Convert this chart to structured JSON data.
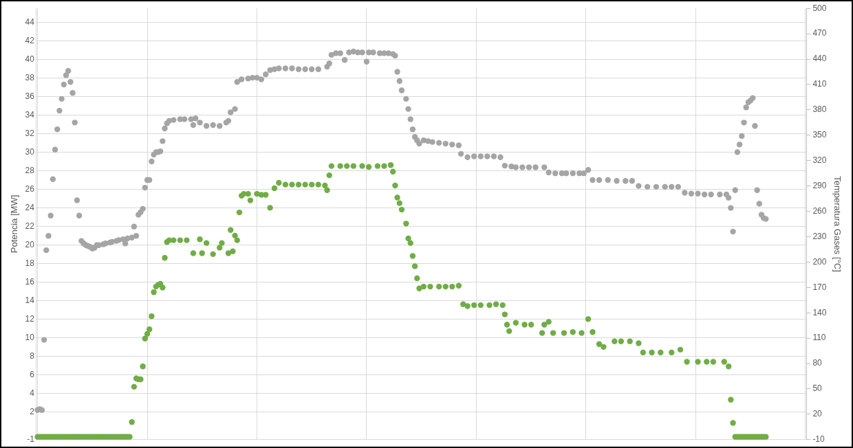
{
  "chart_data": {
    "type": "scatter",
    "ylabel": "Potencia [MW]",
    "y2label": "Temperatura Gases [°C]",
    "categories": [
      null,
      null,
      null,
      null,
      null,
      null,
      null,
      null,
      null,
      null,
      null,
      null,
      null,
      null,
      null,
      null,
      null,
      null,
      null,
      null,
      null,
      null,
      null,
      null,
      null,
      null,
      null,
      null,
      null,
      null,
      null,
      null,
      null,
      null,
      null,
      null,
      null,
      null,
      null,
      null,
      null,
      null,
      null,
      null,
      null,
      null,
      null,
      null,
      null,
      null,
      null,
      null,
      null,
      null,
      null,
      null,
      null,
      null,
      null,
      null,
      null,
      null,
      null,
      null,
      null,
      null,
      null,
      null,
      null,
      null,
      null,
      null,
      null,
      null,
      null,
      null,
      null,
      null,
      null,
      null,
      null,
      null,
      null,
      null,
      null,
      null,
      null,
      null,
      null,
      null,
      null,
      null,
      null,
      null,
      null,
      null,
      null,
      null,
      null,
      null,
      null,
      null,
      null,
      null,
      null,
      null,
      null,
      null,
      null,
      null,
      null,
      null,
      null,
      null,
      null,
      null,
      null,
      null,
      null,
      null,
      null,
      null,
      null,
      null,
      null,
      null,
      null,
      null,
      null,
      null,
      null,
      null,
      null,
      null,
      null,
      null,
      null,
      null,
      null,
      null,
      null,
      null,
      null,
      null,
      null,
      null,
      null,
      null,
      null,
      null,
      null,
      null,
      null,
      null,
      null,
      null,
      null,
      null,
      null,
      null,
      null,
      null,
      null,
      null,
      null,
      null,
      null,
      null,
      null,
      null,
      null,
      null,
      null,
      null,
      null,
      null,
      null,
      null,
      null,
      null,
      null,
      null,
      null,
      null,
      null,
      null,
      null,
      null,
      null,
      null,
      null,
      null,
      null,
      null,
      null,
      null,
      null,
      null,
      null,
      null,
      null,
      null,
      null,
      null,
      null,
      null,
      null,
      null,
      null,
      null,
      null,
      null,
      null,
      null,
      null,
      null,
      null,
      null,
      null,
      null,
      null,
      null,
      null,
      null,
      null,
      null,
      null,
      null,
      null,
      null,
      null,
      null,
      null,
      null,
      null,
      null,
      null,
      null,
      null,
      null,
      null,
      null,
      null,
      null,
      null,
      null,
      null,
      null,
      null,
      null,
      null,
      null,
      null,
      null,
      null,
      null,
      null,
      null,
      null,
      null,
      null,
      null,
      null,
      null,
      null,
      null,
      null,
      null,
      null,
      null,
      null,
      null,
      null,
      null,
      null,
      null,
      null,
      null,
      null,
      null,
      null,
      null,
      null,
      null,
      null,
      null,
      null,
      null,
      null,
      null,
      null,
      null,
      null,
      null,
      null,
      null,
      null,
      null,
      null,
      null,
      null,
      null,
      null,
      null,
      null,
      null,
      null,
      null,
      null,
      null,
      null,
      null,
      null,
      null,
      null,
      null,
      null,
      null,
      null,
      null,
      null,
      null,
      null,
      null,
      null,
      null,
      null,
      null,
      null,
      null,
      null,
      null,
      null,
      null,
      null,
      null,
      null,
      null,
      null,
      null,
      null,
      null,
      null,
      null,
      null,
      null,
      null,
      null,
      null,
      null,
      null
    ],
    "ylim": [
      -1,
      45.5
    ],
    "yticks": [
      -1,
      2,
      4,
      6,
      8,
      10,
      12,
      14,
      16,
      18,
      20,
      22,
      24,
      26,
      28,
      30,
      32,
      34,
      36,
      38,
      40,
      42,
      44
    ],
    "y2lim": [
      -10,
      500
    ],
    "y2ticks": [
      -10,
      20,
      50,
      80,
      110,
      140,
      170,
      200,
      230,
      260,
      290,
      320,
      350,
      380,
      410,
      440,
      470,
      500
    ],
    "grid": true,
    "legend": false,
    "marker": "circle",
    "tick_labels": "y",
    "series": [
      {
        "color": "#a5a5a5",
        "axis": "y2",
        "values": [
          25,
          26,
          25,
          108,
          214,
          231,
          255,
          298,
          333,
          357,
          379,
          393,
          410,
          421,
          426,
          413,
          400,
          365,
          273,
          255,
          225,
          222,
          220,
          219,
          218,
          216,
          217,
          220,
          220,
          null,
          221,
          222,
          null,
          223,
          224,
          null,
          225,
          226,
          null,
          227,
          222,
          228,
          null,
          229,
          242,
          231,
          256,
          259,
          263,
          288,
          297,
          297,
          319,
          327,
          330,
          330,
          331,
          343,
          358,
          364,
          367,
          null,
          368,
          null,
          null,
          369,
          null,
          369,
          null,
          null,
          369,
          362,
          370,
          null,
          365,
          null,
          null,
          361,
          null,
          null,
          362,
          null,
          null,
          361,
          null,
          null,
          365,
          367,
          377,
          null,
          381,
          413,
          null,
          416,
          null,
          null,
          417,
          null,
          418,
          null,
          418,
          null,
          416,
          null,
          422,
          null,
          427,
          null,
          428,
          null,
          429,
          null,
          null,
          429,
          null,
          null,
          429,
          null,
          null,
          428,
          null,
          null,
          428,
          null,
          null,
          428,
          null,
          null,
          428,
          null,
          null,
          null,
          431,
          435,
          445,
          null,
          447,
          null,
          447,
          null,
          439,
          null,
          448,
          null,
          449,
          null,
          448,
          null,
          448,
          null,
          437,
          448,
          null,
          448,
          null,
          null,
          447,
          null,
          447,
          null,
          447,
          null,
          446,
          444,
          425,
          414,
          403,
          null,
          393,
          381,
          369,
          357,
          348,
          344,
          340,
          null,
          344,
          null,
          343,
          null,
          342,
          null,
          null,
          341,
          null,
          null,
          340,
          null,
          null,
          339,
          null,
          null,
          338,
          328,
          null,
          null,
          324,
          null,
          null,
          325,
          null,
          null,
          325,
          null,
          null,
          325,
          null,
          null,
          325,
          null,
          null,
          324,
          null,
          314,
          null,
          null,
          313,
          null,
          312,
          null,
          null,
          312,
          null,
          null,
          312,
          null,
          null,
          312,
          null,
          null,
          null,
          312,
          null,
          306,
          null,
          null,
          305,
          null,
          null,
          305,
          null,
          305,
          null,
          null,
          305,
          null,
          null,
          305,
          null,
          305,
          null,
          309,
          null,
          297,
          null,
          null,
          297,
          null,
          null,
          null,
          297,
          null,
          null,
          null,
          296,
          null,
          null,
          null,
          296,
          null,
          null,
          296,
          null,
          null,
          290,
          null,
          null,
          null,
          289,
          null,
          null,
          null,
          289,
          null,
          null,
          null,
          289,
          null,
          null,
          289,
          null,
          null,
          289,
          null,
          null,
          282,
          null,
          null,
          281,
          null,
          null,
          281,
          null,
          null,
          280,
          null,
          null,
          280,
          null,
          null,
          null,
          280,
          null,
          null,
          280,
          276,
          264,
          236,
          285,
          330,
          339,
          349,
          365,
          383,
          389,
          391,
          394,
          361,
          285,
          269,
          256,
          252,
          251,
          null,
          null,
          null,
          null,
          null,
          null,
          null,
          null,
          null,
          null,
          null,
          null,
          null,
          null,
          null,
          null,
          null,
          null
        ]
      },
      {
        "color": "#70ad47",
        "values": [
          -0.7,
          -0.7,
          -0.7,
          -0.7,
          -0.7,
          -0.7,
          -0.7,
          -0.7,
          -0.7,
          -0.7,
          -0.7,
          -0.7,
          -0.7,
          -0.7,
          -0.7,
          -0.7,
          -0.7,
          -0.7,
          -0.7,
          -0.7,
          -0.7,
          -0.7,
          -0.7,
          -0.7,
          -0.7,
          -0.7,
          -0.7,
          -0.7,
          -0.7,
          -0.7,
          -0.7,
          -0.7,
          -0.7,
          -0.7,
          -0.7,
          -0.7,
          -0.7,
          -0.7,
          -0.7,
          -0.7,
          -0.7,
          -0.7,
          -0.7,
          0.9,
          4.7,
          5.6,
          5.5,
          5.5,
          6.9,
          9.9,
          10.4,
          10.9,
          12.3,
          14.9,
          15.5,
          15.7,
          15.8,
          15.4,
          18.6,
          20.3,
          20.5,
          null,
          20.5,
          null,
          null,
          20.5,
          null,
          null,
          20.5,
          null,
          null,
          19.1,
          null,
          null,
          20.6,
          19.1,
          null,
          20.2,
          null,
          null,
          19.0,
          null,
          null,
          19.7,
          20.2,
          null,
          null,
          19.1,
          21.6,
          19.3,
          21.0,
          20.5,
          23.5,
          25.3,
          25.5,
          null,
          25.5,
          24.8,
          null,
          null,
          25.5,
          null,
          25.4,
          null,
          25.4,
          null,
          24.0,
          null,
          26.1,
          null,
          26.7,
          null,
          null,
          26.5,
          null,
          null,
          26.5,
          null,
          null,
          26.5,
          null,
          null,
          26.5,
          null,
          null,
          26.5,
          null,
          null,
          26.5,
          null,
          null,
          26.4,
          25.9,
          27.5,
          28.5,
          null,
          null,
          null,
          28.5,
          null,
          null,
          28.5,
          null,
          null,
          28.5,
          null,
          null,
          null,
          28.5,
          null,
          null,
          28.4,
          null,
          null,
          null,
          28.5,
          null,
          null,
          28.5,
          null,
          null,
          28.6,
          27.9,
          26.4,
          25.1,
          24.5,
          23.8,
          null,
          22.3,
          20.7,
          20.2,
          18.8,
          17.7,
          16.4,
          15.3,
          null,
          15.5,
          null,
          null,
          15.5,
          null,
          null,
          null,
          15.5,
          null,
          null,
          15.5,
          null,
          null,
          15.5,
          null,
          null,
          15.6,
          null,
          13.6,
          null,
          13.4,
          null,
          null,
          13.5,
          null,
          null,
          13.5,
          null,
          null,
          null,
          13.5,
          null,
          null,
          13.6,
          null,
          null,
          13.5,
          12.5,
          11.4,
          10.7,
          null,
          null,
          11.6,
          null,
          null,
          null,
          11.4,
          null,
          null,
          11.4,
          null,
          null,
          null,
          null,
          10.5,
          11.4,
          null,
          11.7,
          null,
          10.5,
          null,
          null,
          null,
          null,
          10.5,
          null,
          null,
          null,
          10.6,
          null,
          null,
          null,
          10.5,
          null,
          null,
          12.0,
          null,
          10.6,
          null,
          null,
          9.3,
          null,
          9.0,
          null,
          null,
          null,
          null,
          9.6,
          null,
          null,
          9.6,
          null,
          null,
          null,
          9.6,
          null,
          null,
          null,
          9.4,
          null,
          8.4,
          null,
          null,
          null,
          8.4,
          null,
          null,
          null,
          8.4,
          null,
          null,
          null,
          null,
          8.4,
          null,
          null,
          null,
          8.7,
          null,
          null,
          7.4,
          null,
          null,
          null,
          null,
          7.4,
          null,
          null,
          null,
          7.4,
          null,
          null,
          7.4,
          null,
          null,
          null,
          null,
          7.4,
          null,
          6.9,
          3.3,
          0.8,
          -0.7,
          -0.7,
          -0.7,
          -0.7,
          -0.7,
          -0.7,
          -0.7,
          -0.7,
          -0.7,
          -0.7,
          -0.7,
          -0.7,
          -0.7,
          -0.7,
          -0.7,
          null,
          null,
          null,
          null,
          null,
          null,
          null,
          null,
          null,
          null,
          null,
          null,
          null,
          null,
          null,
          null,
          null,
          null
        ]
      }
    ]
  }
}
